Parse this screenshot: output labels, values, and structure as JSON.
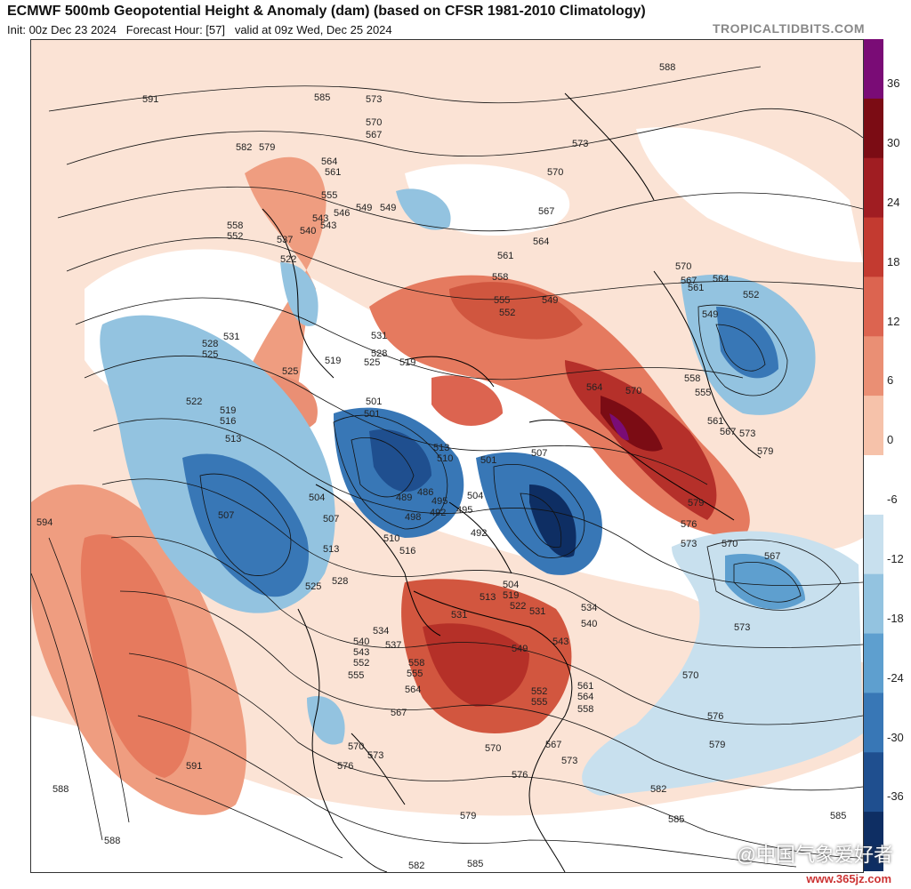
{
  "header": {
    "title": "ECMWF 500mb Geopotential Height & Anomaly (dam) (based on CFSR 1981-2010 Climatology)",
    "init": "Init: 00z Dec 23 2024",
    "forecast_hour": "Forecast Hour: [57]",
    "valid": "valid at 09z Wed, Dec 25 2024",
    "brand": "TROPICALTIDBITS.COM"
  },
  "colorbar": {
    "ticks": [
      "36",
      "30",
      "24",
      "18",
      "12",
      "6",
      "0",
      "-6",
      "-12",
      "-18",
      "-24",
      "-30",
      "-36"
    ],
    "colors": [
      "#7a0c76",
      "#7b0c14",
      "#a01d22",
      "#c33a30",
      "#dc6450",
      "#ea8f74",
      "#f6c2aa",
      "#ffffff",
      "#c8e0ee",
      "#93c3e0",
      "#5e9fcf",
      "#3877b6",
      "#1f4f8f",
      "#0e2e63"
    ]
  },
  "contour_labels": [
    "588",
    "591",
    "585",
    "582",
    "579",
    "576",
    "573",
    "570",
    "567",
    "564",
    "561",
    "558",
    "555",
    "552",
    "549",
    "546",
    "543",
    "540",
    "537",
    "534",
    "531",
    "528",
    "525",
    "522",
    "519",
    "516",
    "513",
    "510",
    "507",
    "504",
    "501",
    "498",
    "495",
    "492",
    "489",
    "486",
    "594"
  ],
  "watermark": {
    "text": "@中国气象爱好者",
    "site": "www.365jz.com"
  }
}
